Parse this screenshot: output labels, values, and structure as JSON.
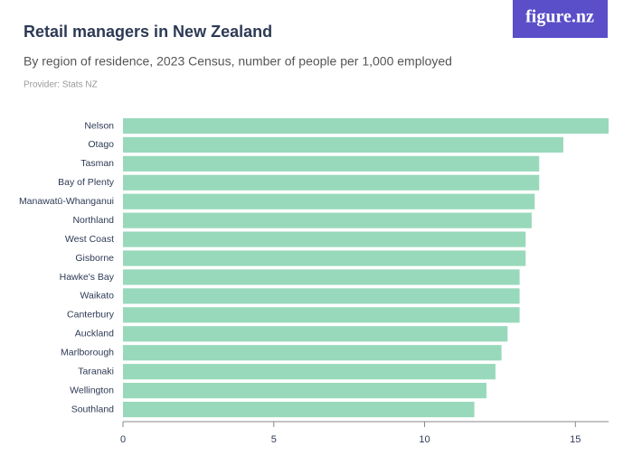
{
  "logo": "figure.nz",
  "chart_data": {
    "type": "bar",
    "orientation": "horizontal",
    "title": "Retail managers in New Zealand",
    "subtitle": "By region of residence, 2023 Census, number of people per 1,000 employed",
    "provider": "Provider: Stats NZ",
    "categories": [
      "Nelson",
      "Otago",
      "Tasman",
      "Bay of Plenty",
      "Manawatū-Whanganui",
      "Northland",
      "West Coast",
      "Gisborne",
      "Hawke's Bay",
      "Waikato",
      "Canterbury",
      "Auckland",
      "Marlborough",
      "Taranaki",
      "Wellington",
      "Southland"
    ],
    "values": [
      16.1,
      14.6,
      13.8,
      13.8,
      13.65,
      13.55,
      13.35,
      13.35,
      13.15,
      13.15,
      13.15,
      12.75,
      12.55,
      12.35,
      12.05,
      11.65
    ],
    "color": "#98d9bb",
    "xlim": [
      0,
      16.1
    ],
    "xticks": [
      0,
      5,
      10,
      15
    ],
    "grid": false
  }
}
